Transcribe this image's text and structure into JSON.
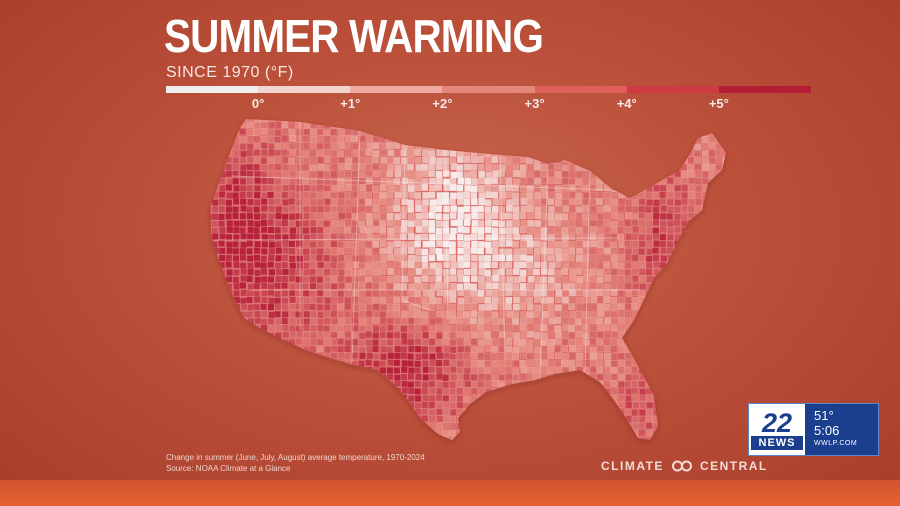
{
  "title": "SUMMER WARMING",
  "subtitle": "SINCE 1970 (°F)",
  "legend": {
    "ticks": [
      {
        "label": "0°",
        "value": 0
      },
      {
        "label": "+1°",
        "value": 1
      },
      {
        "label": "+2°",
        "value": 2
      },
      {
        "label": "+3°",
        "value": 3
      },
      {
        "label": "+4°",
        "value": 4
      },
      {
        "label": "+5°",
        "value": 5
      }
    ],
    "range": [
      -1,
      6
    ],
    "colors": [
      "#f2eeee",
      "#f4d4cf",
      "#eeaba1",
      "#e6877c",
      "#df5f5b",
      "#cf3a43",
      "#b41d34"
    ]
  },
  "map": {
    "region": "Contiguous United States",
    "fill_scale": {
      "low": "#f6eceb",
      "mid": "#e6877c",
      "high": "#b8213a"
    },
    "hotspots": [
      "Southwest",
      "Texas",
      "Northeast",
      "Florida"
    ],
    "coolspot": "Northern Plains / Midwest"
  },
  "footnote": {
    "line1": "Change in summer (June, July, August) average temperature, 1970-2024",
    "line2": "Source: NOAA Climate at a Glance"
  },
  "brand": {
    "left": "CLIMATE",
    "right": "CENTRAL",
    "icon": "linked-rings-icon"
  },
  "news_badge": {
    "number": "22",
    "word": "NEWS",
    "temperature": "51°",
    "time": "5:06",
    "site": "WWLP.COM",
    "colors": {
      "blue": "#1b3f8e",
      "white": "#ffffff"
    }
  }
}
